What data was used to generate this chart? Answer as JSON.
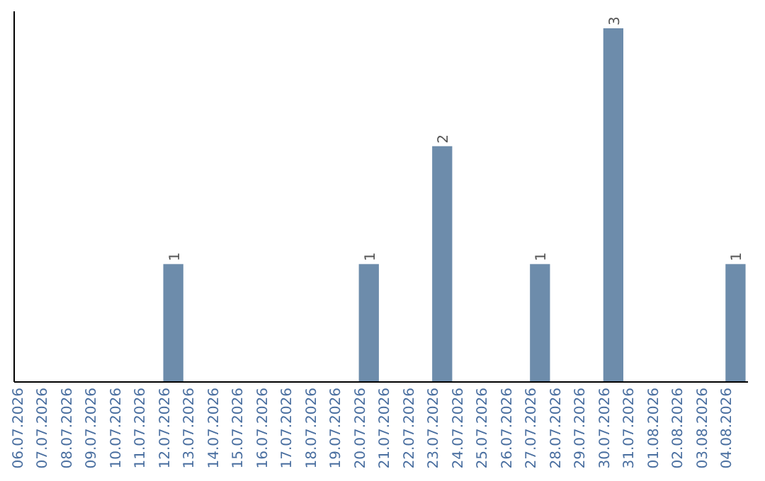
{
  "chart_data": {
    "type": "bar",
    "categories": [
      "06.07.2026",
      "07.07.2026",
      "08.07.2026",
      "09.07.2026",
      "10.07.2026",
      "11.07.2026",
      "12.07.2026",
      "13.07.2026",
      "14.07.2026",
      "15.07.2026",
      "16.07.2026",
      "17.07.2026",
      "18.07.2026",
      "19.07.2026",
      "20.07.2026",
      "21.07.2026",
      "22.07.2026",
      "23.07.2026",
      "24.07.2026",
      "25.07.2026",
      "26.07.2026",
      "27.07.2026",
      "28.07.2026",
      "29.07.2026",
      "30.07.2026",
      "31.07.2026",
      "01.08.2026",
      "02.08.2026",
      "03.08.2026",
      "04.08.2026"
    ],
    "values": [
      0,
      0,
      0,
      0,
      0,
      0,
      1,
      0,
      0,
      0,
      0,
      0,
      0,
      0,
      1,
      0,
      0,
      2,
      0,
      0,
      0,
      1,
      0,
      0,
      3,
      0,
      0,
      0,
      0,
      1
    ],
    "value_labels": [
      null,
      null,
      null,
      null,
      null,
      null,
      "1",
      null,
      null,
      null,
      null,
      null,
      null,
      null,
      "1",
      null,
      null,
      "2",
      null,
      null,
      null,
      "1",
      null,
      null,
      "3",
      null,
      null,
      null,
      null,
      "1"
    ],
    "color": "#6d8cab"
  }
}
